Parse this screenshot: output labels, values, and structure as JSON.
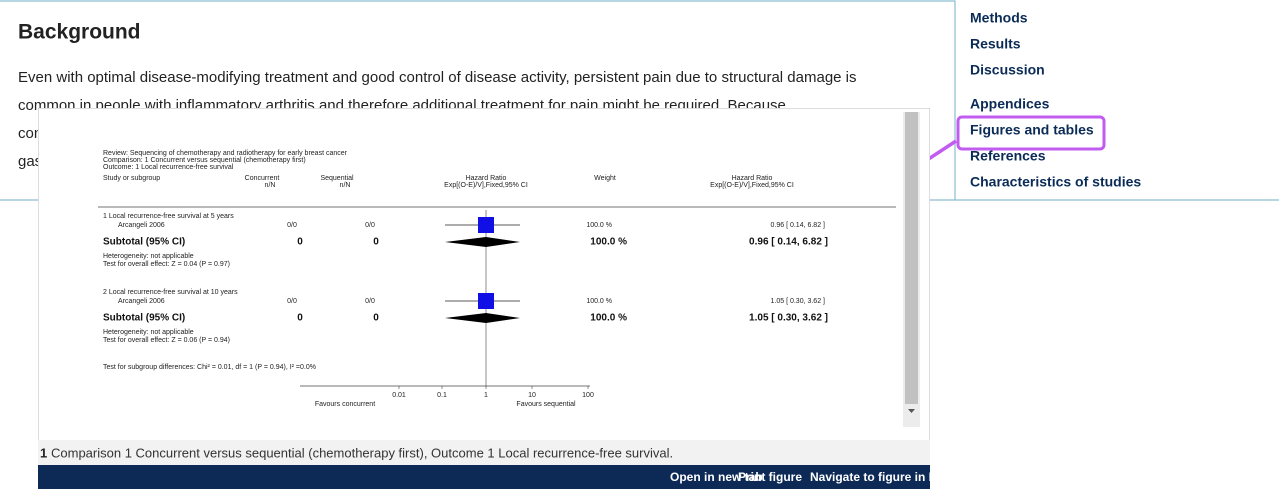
{
  "article": {
    "heading": "Background",
    "paragraph": [
      "Even with optimal disease-modifying treatment and good control of disease activity, persistent pain due to structural damage is",
      "common in people with inflammatory arthritis and therefore additional treatment for pain might be required. Because",
      "con",
      "gas"
    ]
  },
  "nav": [
    "Methods",
    "Results",
    "Discussion",
    "Appendices",
    "Figures and tables",
    "References",
    "Characteristics of studies"
  ],
  "figure": {
    "review": "Review: Sequencing of chemotherapy and radiotherapy for early breast cancer",
    "comparison": "Comparison: 1 Concurrent versus sequential (chemotherapy first)",
    "outcome": "Outcome: 1 Local recurrence-free survival",
    "columns": {
      "study": "Study or subgroup",
      "concurrent": "Concurrent",
      "sequential": "Sequential",
      "n_n": "n/N",
      "hr": "Hazard Ratio",
      "method": "Exp[(O-E)/V],Fixed,95% CI",
      "weight": "Weight"
    },
    "groups": [
      {
        "title": "1 Local recurrence-free survival at 5 years",
        "study": "Arcangeli 2006",
        "concurrent": "0/0",
        "sequential": "0/0",
        "weight": "100.0 %",
        "hr": "0.96 [ 0.14, 6.82 ]",
        "subtotal": {
          "label": "Subtotal (95% CI)",
          "concurrent": "0",
          "sequential": "0",
          "weight": "100.0 %",
          "hr": "0.96 [ 0.14, 6.82 ]"
        },
        "heterogeneity": "Heterogeneity: not applicable",
        "test": "Test for overall effect: Z = 0.04 (P = 0.97)"
      },
      {
        "title": "2 Local recurrence-free survival at 10 years",
        "study": "Arcangeli 2006",
        "concurrent": "0/0",
        "sequential": "0/0",
        "weight": "100.0 %",
        "hr": "1.05 [ 0.30, 3.62 ]",
        "subtotal": {
          "label": "Subtotal (95% CI)",
          "concurrent": "0",
          "sequential": "0",
          "weight": "100.0 %",
          "hr": "1.05 [ 0.30, 3.62 ]"
        },
        "heterogeneity": "Heterogeneity: not applicable",
        "test": "Test for overall effect: Z = 0.06 (P = 0.94)"
      }
    ],
    "subgroup_test": "Test for subgroup differences: Chi² = 0.01, df = 1 (P = 0.94), I² =0.0%",
    "axis_ticks": [
      "0.01",
      "0.1",
      "1",
      "10",
      "100"
    ],
    "favours_left": "Favours concurrent",
    "favours_right": "Favours sequential"
  },
  "caption": {
    "number": "1",
    "text": "Comparison 1 Concurrent versus sequential (chemotherapy first), Outcome 1 Local recurrence-free survival."
  },
  "buttons": [
    "Open in new tab",
    "Print figure",
    "Navigate to figure in Rev"
  ]
}
